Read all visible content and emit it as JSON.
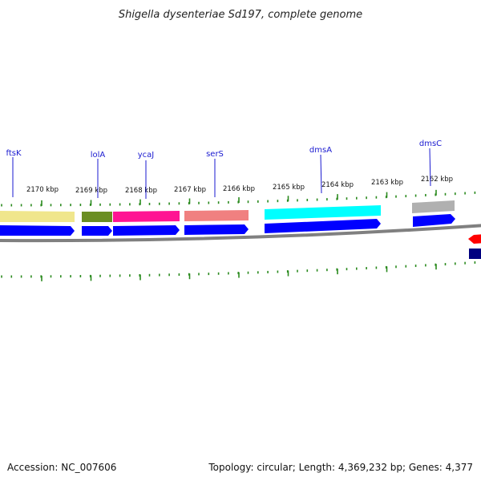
{
  "title": "Shigella dysenteriae Sd197, complete genome",
  "footer": {
    "accession": "Accession: NC_007606",
    "summary": "Topology: circular; Length: 4,369,232 bp; Genes: 4,377"
  },
  "ticks": [
    "2170 kbp",
    "2169 kbp",
    "2168 kbp",
    "2167 kbp",
    "2166 kbp",
    "2165 kbp",
    "2164 kbp",
    "2163 kbp",
    "2162 kbp"
  ],
  "genes": [
    {
      "label": "ftsK",
      "color": "#f0e68c"
    },
    {
      "label": "lolA",
      "color": "#6b8e23"
    },
    {
      "label": "ycaJ",
      "color": "#ff1493"
    },
    {
      "label": "serS",
      "color": "#f08080"
    },
    {
      "label": "dmsA",
      "color": "#00ffff"
    },
    {
      "label": "dmsC",
      "color": "#b0b0b0"
    }
  ],
  "colors": {
    "cds": "#0000ff",
    "backbone": "#808080",
    "ticks": "#2a8a1e",
    "label": "#1a1ad0",
    "red_feature": "#ff0000",
    "navy_feature": "#000080"
  }
}
